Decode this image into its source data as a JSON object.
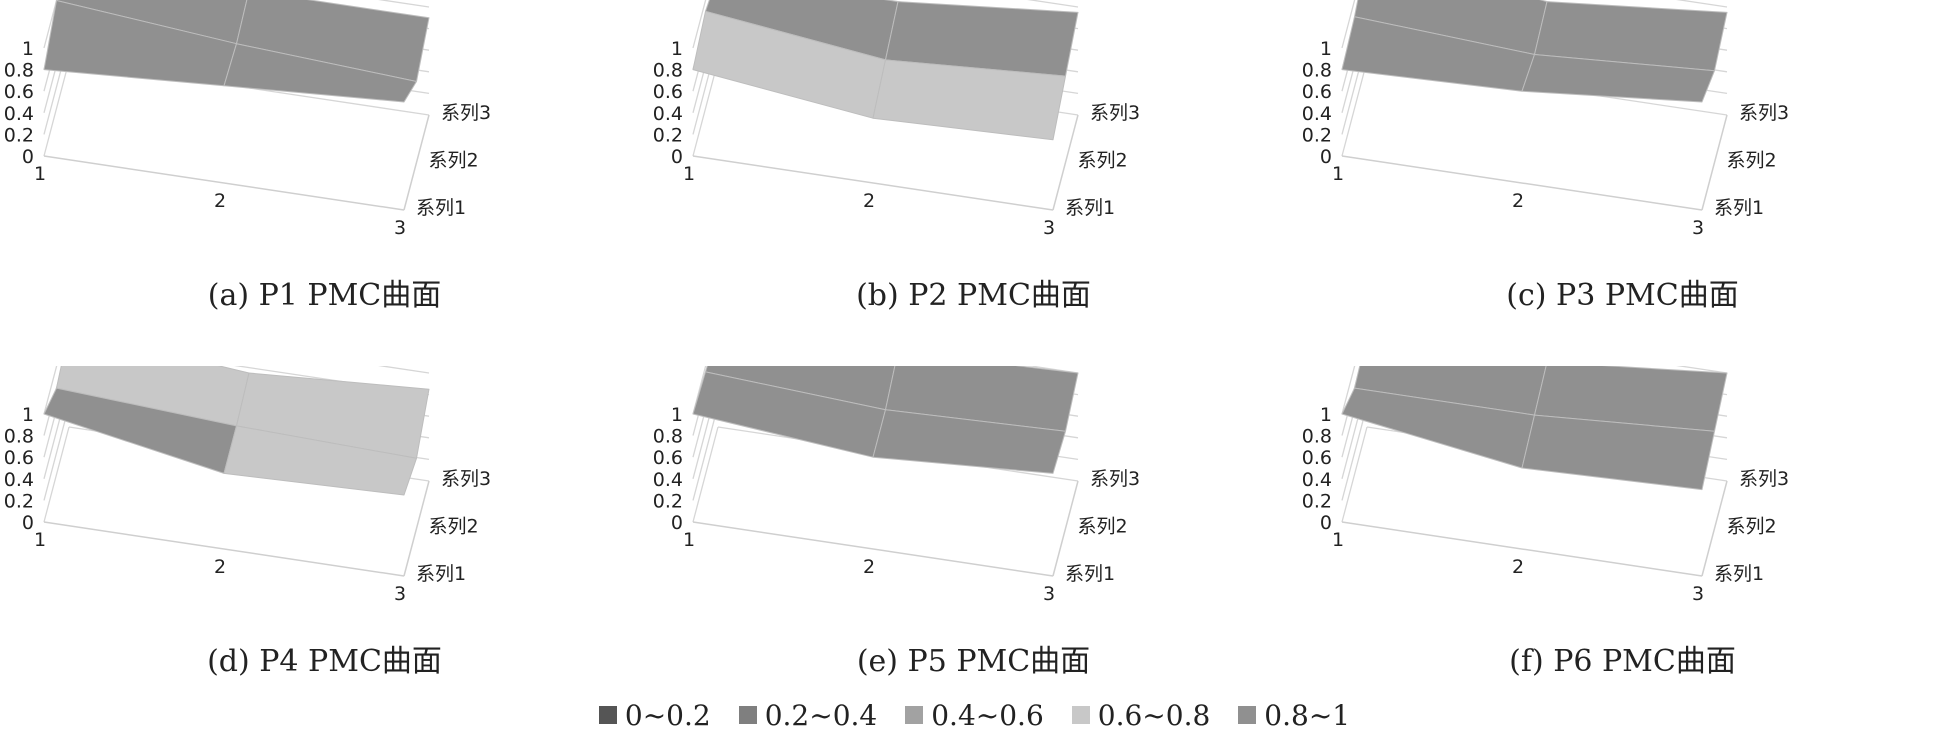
{
  "chart_data": [
    {
      "type": "surface3d",
      "caption": "(a) P1 PMC曲面",
      "x_ticks": [
        "1",
        "2",
        "3"
      ],
      "series": [
        "系列1",
        "系列2",
        "系列3"
      ],
      "z_ticks": [
        "0",
        "0.2",
        "0.4",
        "0.6",
        "0.8",
        "1"
      ],
      "zlim": [
        0,
        1
      ],
      "values": [
        [
          0.8,
          1,
          1
        ],
        [
          0.9,
          0.85,
          0.9
        ],
        [
          1,
          0.75,
          0.9
        ]
      ]
    },
    {
      "type": "surface3d",
      "caption": "(b) P2 PMC曲面",
      "x_ticks": [
        "1",
        "2",
        "3"
      ],
      "series": [
        "系列1",
        "系列2",
        "系列3"
      ],
      "z_ticks": [
        "0",
        "0.2",
        "0.4",
        "0.6",
        "0.8",
        "1"
      ],
      "zlim": [
        0,
        1
      ],
      "values": [
        [
          0.8,
          0.9,
          0.8
        ],
        [
          0.6,
          0.7,
          0.8
        ],
        [
          0.65,
          0.8,
          0.95
        ]
      ]
    },
    {
      "type": "surface3d",
      "caption": "(c) P3 PMC曲面",
      "x_ticks": [
        "1",
        "2",
        "3"
      ],
      "series": [
        "系列1",
        "系列2",
        "系列3"
      ],
      "z_ticks": [
        "0",
        "0.2",
        "0.4",
        "0.6",
        "0.8",
        "1"
      ],
      "zlim": [
        0,
        1
      ],
      "values": [
        [
          0.8,
          0.85,
          1
        ],
        [
          0.85,
          0.75,
          0.8
        ],
        [
          1,
          0.85,
          0.95
        ]
      ]
    },
    {
      "type": "surface3d",
      "caption": "(d) P4 PMC曲面",
      "x_ticks": [
        "1",
        "2",
        "3"
      ],
      "series": [
        "系列1",
        "系列2",
        "系列3"
      ],
      "z_ticks": [
        "0",
        "0.2",
        "0.4",
        "0.6",
        "0.8",
        "1"
      ],
      "zlim": [
        0,
        1
      ],
      "values": [
        [
          1,
          0.8,
          0.9
        ],
        [
          0.7,
          0.7,
          0.75
        ],
        [
          0.75,
          0.65,
          0.85
        ]
      ]
    },
    {
      "type": "surface3d",
      "caption": "(e) P5 PMC曲面",
      "x_ticks": [
        "1",
        "2",
        "3"
      ],
      "series": [
        "系列1",
        "系列2",
        "系列3"
      ],
      "z_ticks": [
        "0",
        "0.2",
        "0.4",
        "0.6",
        "0.8",
        "1"
      ],
      "zlim": [
        0,
        1
      ],
      "values": [
        [
          1,
          0.95,
          0.9
        ],
        [
          0.85,
          0.85,
          0.95
        ],
        [
          0.95,
          0.9,
          1
        ]
      ]
    },
    {
      "type": "surface3d",
      "caption": "(f) P6 PMC曲面",
      "x_ticks": [
        "1",
        "2",
        "3"
      ],
      "series": [
        "系列1",
        "系列2",
        "系列3"
      ],
      "z_ticks": [
        "0",
        "0.2",
        "0.4",
        "0.6",
        "0.8",
        "1"
      ],
      "zlim": [
        0,
        1
      ],
      "values": [
        [
          1,
          0.8,
          0.85
        ],
        [
          0.75,
          0.8,
          0.85
        ],
        [
          0.8,
          0.9,
          1
        ]
      ]
    }
  ],
  "legend": [
    {
      "label": "0~0.2",
      "color": "#555555"
    },
    {
      "label": "0.2~0.4",
      "color": "#7f7f7f"
    },
    {
      "label": "0.4~0.6",
      "color": "#a2a2a2"
    },
    {
      "label": "0.6~0.8",
      "color": "#c8c8c8"
    },
    {
      "label": "0.8~1",
      "color": "#909090"
    }
  ]
}
